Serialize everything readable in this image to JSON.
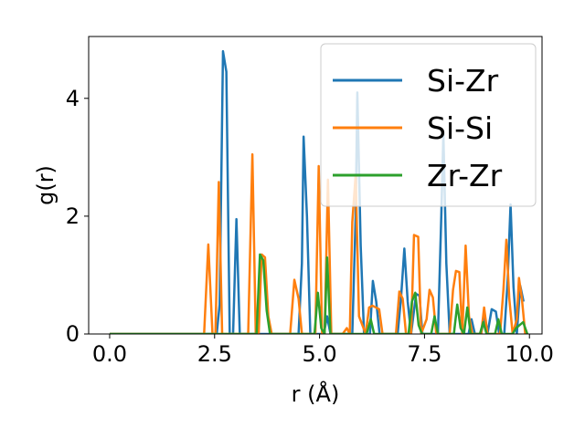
{
  "chart_data": {
    "type": "line",
    "xlabel": "r (Å)",
    "ylabel": "g(r)",
    "xlim": [
      -0.5,
      10.3
    ],
    "ylim": [
      0,
      5.05
    ],
    "xticks": [
      0.0,
      2.5,
      5.0,
      7.5,
      10.0
    ],
    "xtick_labels": [
      "0.0",
      "2.5",
      "5.0",
      "7.5",
      "10.0"
    ],
    "yticks": [
      0,
      2,
      4
    ],
    "ytick_labels": [
      "0",
      "2",
      "4"
    ],
    "grid": false,
    "legend_position": "top-right",
    "series": [
      {
        "name": "Si-Zr",
        "color": "#1f77b4",
        "points": [
          [
            0.0,
            0
          ],
          [
            2.55,
            0
          ],
          [
            2.62,
            0.5
          ],
          [
            2.7,
            4.8
          ],
          [
            2.78,
            4.45
          ],
          [
            2.86,
            0
          ],
          [
            2.94,
            0
          ],
          [
            3.02,
            1.95
          ],
          [
            3.1,
            0
          ],
          [
            4.5,
            0
          ],
          [
            4.58,
            1.2
          ],
          [
            4.62,
            3.35
          ],
          [
            4.7,
            2.0
          ],
          [
            4.78,
            0
          ],
          [
            5.1,
            0
          ],
          [
            5.18,
            0.3
          ],
          [
            5.26,
            0
          ],
          [
            5.78,
            0
          ],
          [
            5.86,
            2.0
          ],
          [
            5.9,
            4.1
          ],
          [
            5.98,
            1.5
          ],
          [
            6.06,
            0
          ],
          [
            6.2,
            0
          ],
          [
            6.27,
            0.9
          ],
          [
            6.35,
            0.55
          ],
          [
            6.43,
            0
          ],
          [
            6.86,
            0
          ],
          [
            6.94,
            0.6
          ],
          [
            7.02,
            1.45
          ],
          [
            7.1,
            0.55
          ],
          [
            7.18,
            0
          ],
          [
            7.3,
            0.68
          ],
          [
            7.38,
            0.65
          ],
          [
            7.45,
            0
          ],
          [
            7.82,
            0
          ],
          [
            7.9,
            2.0
          ],
          [
            7.95,
            3.4
          ],
          [
            8.02,
            1.2
          ],
          [
            8.1,
            0
          ],
          [
            8.55,
            0
          ],
          [
            8.62,
            0.25
          ],
          [
            8.7,
            0
          ],
          [
            8.85,
            0
          ],
          [
            8.92,
            0.3
          ],
          [
            9.0,
            0
          ],
          [
            9.1,
            0.42
          ],
          [
            9.2,
            0.38
          ],
          [
            9.28,
            0
          ],
          [
            9.4,
            0
          ],
          [
            9.48,
            0.9
          ],
          [
            9.55,
            2.2
          ],
          [
            9.62,
            0.8
          ],
          [
            9.7,
            0
          ],
          [
            9.78,
            0.82
          ],
          [
            9.86,
            0.55
          ]
        ]
      },
      {
        "name": "Si-Si",
        "color": "#ff7f0e",
        "points": [
          [
            0.0,
            0
          ],
          [
            2.25,
            0
          ],
          [
            2.35,
            1.52
          ],
          [
            2.45,
            0
          ],
          [
            2.52,
            0
          ],
          [
            2.6,
            2.58
          ],
          [
            2.68,
            0
          ],
          [
            3.3,
            0
          ],
          [
            3.4,
            3.05
          ],
          [
            3.48,
            0
          ],
          [
            3.55,
            0
          ],
          [
            3.62,
            1.35
          ],
          [
            3.7,
            1.3
          ],
          [
            3.78,
            0.3
          ],
          [
            3.86,
            0
          ],
          [
            4.3,
            0
          ],
          [
            4.4,
            0.92
          ],
          [
            4.5,
            0.6
          ],
          [
            4.58,
            0
          ],
          [
            4.9,
            0
          ],
          [
            4.98,
            2.85
          ],
          [
            5.06,
            0
          ],
          [
            5.12,
            0
          ],
          [
            5.2,
            2.62
          ],
          [
            5.28,
            0
          ],
          [
            5.55,
            0
          ],
          [
            5.65,
            0.1
          ],
          [
            5.72,
            0
          ],
          [
            5.78,
            1.9
          ],
          [
            5.86,
            2.7
          ],
          [
            5.94,
            0.3
          ],
          [
            6.1,
            0
          ],
          [
            6.18,
            0.45
          ],
          [
            6.26,
            0.48
          ],
          [
            6.34,
            0.45
          ],
          [
            6.42,
            0.42
          ],
          [
            6.5,
            0
          ],
          [
            6.82,
            0
          ],
          [
            6.9,
            0.72
          ],
          [
            6.98,
            0.6
          ],
          [
            7.06,
            0
          ],
          [
            7.18,
            0
          ],
          [
            7.25,
            1.68
          ],
          [
            7.35,
            1.65
          ],
          [
            7.42,
            0
          ],
          [
            7.55,
            0.25
          ],
          [
            7.62,
            0.75
          ],
          [
            7.7,
            0.62
          ],
          [
            7.78,
            0
          ],
          [
            8.1,
            0
          ],
          [
            8.18,
            0.75
          ],
          [
            8.25,
            1.07
          ],
          [
            8.33,
            1.05
          ],
          [
            8.4,
            0
          ],
          [
            8.48,
            1.5
          ],
          [
            8.56,
            0.3
          ],
          [
            8.64,
            0
          ],
          [
            8.85,
            0
          ],
          [
            8.92,
            0.45
          ],
          [
            9.0,
            0
          ],
          [
            9.3,
            0
          ],
          [
            9.38,
            0.75
          ],
          [
            9.45,
            1.6
          ],
          [
            9.52,
            0.6
          ],
          [
            9.6,
            0
          ],
          [
            9.7,
            0.25
          ],
          [
            9.75,
            0.95
          ],
          [
            9.82,
            0.6
          ],
          [
            9.9,
            0
          ]
        ]
      },
      {
        "name": "Zr-Zr",
        "color": "#2ca02c",
        "points": [
          [
            0.0,
            0
          ],
          [
            3.5,
            0
          ],
          [
            3.58,
            1.35
          ],
          [
            3.66,
            1.25
          ],
          [
            3.74,
            0.4
          ],
          [
            3.82,
            0
          ],
          [
            4.88,
            0
          ],
          [
            4.96,
            0.7
          ],
          [
            5.04,
            0.1
          ],
          [
            5.12,
            0
          ],
          [
            5.18,
            1.3
          ],
          [
            5.26,
            0
          ],
          [
            6.12,
            0
          ],
          [
            6.22,
            0.25
          ],
          [
            6.3,
            0
          ],
          [
            7.12,
            0
          ],
          [
            7.2,
            0.55
          ],
          [
            7.28,
            0.7
          ],
          [
            7.36,
            0.15
          ],
          [
            7.44,
            0
          ],
          [
            7.66,
            0
          ],
          [
            7.74,
            0.3
          ],
          [
            7.82,
            0
          ],
          [
            8.2,
            0
          ],
          [
            8.28,
            0.5
          ],
          [
            8.36,
            0.1
          ],
          [
            8.44,
            0
          ],
          [
            8.52,
            0.45
          ],
          [
            8.6,
            0
          ],
          [
            8.82,
            0
          ],
          [
            8.9,
            0.2
          ],
          [
            8.98,
            0
          ],
          [
            9.18,
            0
          ],
          [
            9.26,
            0.25
          ],
          [
            9.34,
            0
          ],
          [
            9.6,
            0
          ],
          [
            9.68,
            0.1
          ],
          [
            9.85,
            0.2
          ],
          [
            9.95,
            0
          ]
        ]
      }
    ]
  }
}
